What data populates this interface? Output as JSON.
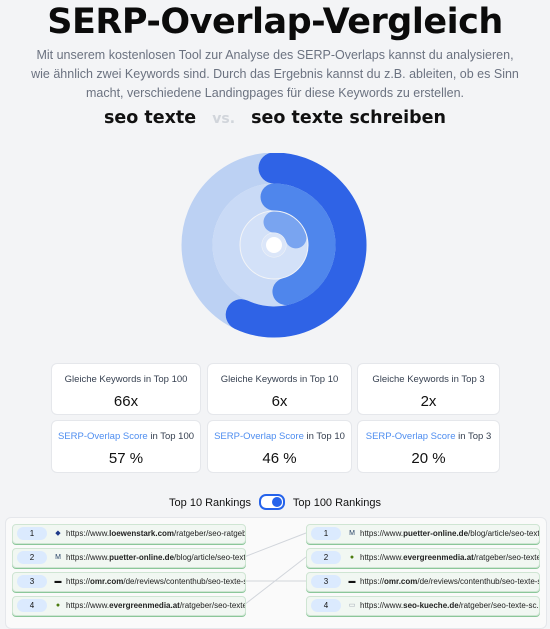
{
  "page": {
    "title": "SERP-Overlap-Vergleich",
    "intro": "Mit unserem kostenlosen Tool zur Analyse des SERP-Overlaps kannst du analysieren, wie ähnlich zwei Keywords sind. Durch das Ergebnis kannst du z.B. ableiten, ob es Sinn macht, verschiedene Landingpages für diese Keywords zu erstellen."
  },
  "comparison": {
    "keyword_a": "seo texte",
    "vs_label": "vs.",
    "keyword_b": "seo texte schreiben"
  },
  "overlap_chart": {
    "rings": [
      {
        "label": "Top 100",
        "value_percent": 57,
        "color": "#2f63e6",
        "track_color": "#bcd1f3"
      },
      {
        "label": "Top 10",
        "value_percent": 46,
        "color": "#4f86ec",
        "track_color": "#c9daf6"
      },
      {
        "label": "Top 3",
        "value_percent": 20,
        "color": "#79a4f0",
        "track_color": "#d3e1f8"
      }
    ],
    "center_color": "#dbe6f9"
  },
  "stats": {
    "same_keywords": [
      {
        "label": "Gleiche Keywords in Top 100",
        "value": "66x"
      },
      {
        "label": "Gleiche Keywords in Top 10",
        "value": "6x"
      },
      {
        "label": "Gleiche Keywords in Top 3",
        "value": "2x"
      }
    ],
    "scores": [
      {
        "label_highlight": "SERP-Overlap Score",
        "label_rest": " in Top 100",
        "value": "57 %"
      },
      {
        "label_highlight": "SERP-Overlap Score",
        "label_rest": " in Top 10",
        "value": "46 %"
      },
      {
        "label_highlight": "SERP-Overlap Score",
        "label_rest": " in Top 3",
        "value": "20 %"
      }
    ]
  },
  "toggle": {
    "left_label": "Top 10 Rankings",
    "right_label": "Top 100 Rankings"
  },
  "rankings": {
    "left": [
      {
        "num": "1",
        "prefix": "https://www.",
        "domain": "loewenstark.com",
        "path": "/ratgeber/seo-ratgeb...",
        "favicon": "lion-favicon-icon",
        "fav_glyph": "◆",
        "fav_color": "#1f3a8a"
      },
      {
        "num": "2",
        "prefix": "https://www.",
        "domain": "puetter-online.de",
        "path": "/blog/article/seo-texte-...",
        "favicon": "puetter-favicon-icon",
        "fav_glyph": "M",
        "fav_color": "#1e3a5f"
      },
      {
        "num": "3",
        "prefix": "https://",
        "domain": "omr.com",
        "path": "/de/reviews/contenthub/seo-texte-s...",
        "favicon": "omr-favicon-icon",
        "fav_glyph": "▬",
        "fav_color": "#111111"
      },
      {
        "num": "4",
        "prefix": "https://www.",
        "domain": "evergreenmedia.at",
        "path": "/ratgeber/seo-texte-...",
        "favicon": "evergreen-favicon-icon",
        "fav_glyph": "●",
        "fav_color": "#4d7c0f"
      }
    ],
    "right": [
      {
        "num": "1",
        "prefix": "https://www.",
        "domain": "puetter-online.de",
        "path": "/blog/article/seo-texte...",
        "favicon": "puetter-favicon-icon",
        "fav_glyph": "M",
        "fav_color": "#1e3a5f"
      },
      {
        "num": "2",
        "prefix": "https://www.",
        "domain": "evergreenmedia.at",
        "path": "/ratgeber/seo-texte-...",
        "favicon": "evergreen-favicon-icon",
        "fav_glyph": "●",
        "fav_color": "#4d7c0f"
      },
      {
        "num": "3",
        "prefix": "https://",
        "domain": "omr.com",
        "path": "/de/reviews/contenthub/seo-texte-s...",
        "favicon": "omr-favicon-icon",
        "fav_glyph": "▬",
        "fav_color": "#111111"
      },
      {
        "num": "4",
        "prefix": "https://www.",
        "domain": "seo-kueche.de",
        "path": "/ratgeber/seo-texte-sc...",
        "favicon": "seokueche-favicon-icon",
        "fav_glyph": "▭",
        "fav_color": "#9ca3af"
      }
    ],
    "connections": [
      [
        1,
        0
      ],
      [
        2,
        2
      ],
      [
        3,
        1
      ]
    ]
  }
}
